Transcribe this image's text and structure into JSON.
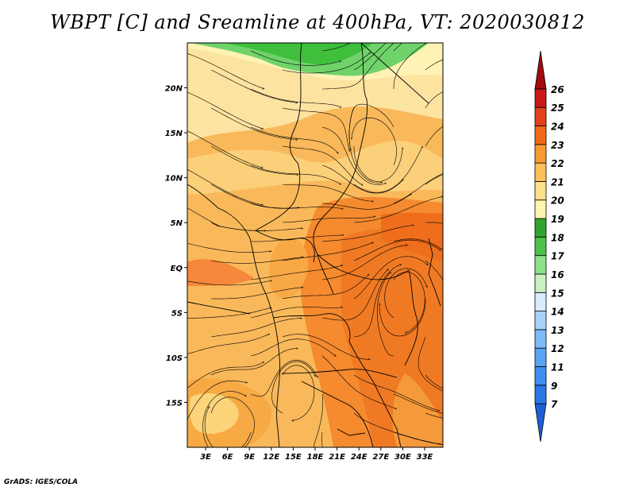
{
  "title": "WBPT [C] and Sreamline at 400hPa, VT: 2020030812",
  "credit": "GrADS: IGES/COLA",
  "map": {
    "lat_labels": [
      "20N",
      "15N",
      "10N",
      "5N",
      "EQ",
      "5S",
      "10S",
      "15S"
    ],
    "lat_values": [
      20,
      15,
      10,
      5,
      0,
      -5,
      -10,
      -15
    ],
    "lon_labels": [
      "3E",
      "6E",
      "9E",
      "12E",
      "15E",
      "18E",
      "21E",
      "24E",
      "27E",
      "30E",
      "33E"
    ],
    "lon_values": [
      3,
      6,
      9,
      12,
      15,
      18,
      21,
      24,
      27,
      30,
      33
    ],
    "lon_range": [
      0.5,
      35.5
    ],
    "lat_range": [
      -20,
      25
    ]
  },
  "colorbar": {
    "labels": [
      "7",
      "9",
      "11",
      "12",
      "13",
      "14",
      "15",
      "16",
      "17",
      "18",
      "19",
      "20",
      "21",
      "22",
      "23",
      "24",
      "25",
      "26"
    ],
    "colors": [
      "#1f5fd6",
      "#2a78e6",
      "#3c8ff0",
      "#5aa4f5",
      "#7fbaf8",
      "#a8d2fb",
      "#d8ecfd",
      "#c8f0c0",
      "#8fe08a",
      "#4cc24a",
      "#2fa32f",
      "#fff3b0",
      "#ffe08a",
      "#fcc05a",
      "#f79a32",
      "#f06a1a",
      "#e0401a",
      "#c81818",
      "#a00c0c"
    ]
  }
}
